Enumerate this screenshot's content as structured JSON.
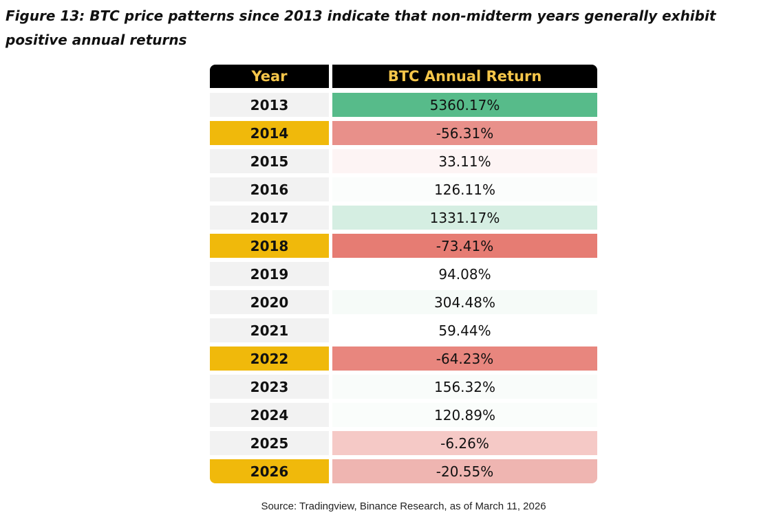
{
  "title": "Figure 13: BTC price patterns since 2013 indicate that non-midterm years generally exhibit positive annual returns",
  "table": {
    "header": [
      "Year",
      "BTC Annual Return"
    ],
    "rows": [
      {
        "year": "2013",
        "return": "5360.17%",
        "year_color": "#f2f2f2",
        "color": "#57bb8a"
      },
      {
        "year": "2014",
        "return": "-56.31%",
        "year_color": "#f0b90b",
        "color": "#e8908a"
      },
      {
        "year": "2015",
        "return": "33.11%",
        "year_color": "#f2f2f2",
        "color": "#fdf4f4"
      },
      {
        "year": "2016",
        "return": "126.11%",
        "year_color": "#f2f2f2",
        "color": "#fbfdfc"
      },
      {
        "year": "2017",
        "return": "1331.17%",
        "year_color": "#f2f2f2",
        "color": "#d5eee2"
      },
      {
        "year": "2018",
        "return": "-73.41%",
        "year_color": "#f0b90b",
        "color": "#e67c73"
      },
      {
        "year": "2019",
        "return": "94.08%",
        "year_color": "#f2f2f2",
        "color": "#ffffff"
      },
      {
        "year": "2020",
        "return": "304.48%",
        "year_color": "#f2f2f2",
        "color": "#f6fbf8"
      },
      {
        "year": "2021",
        "return": "59.44%",
        "year_color": "#f2f2f2",
        "color": "#ffffff"
      },
      {
        "year": "2022",
        "return": "-64.23%",
        "year_color": "#f0b90b",
        "color": "#e8867e"
      },
      {
        "year": "2023",
        "return": "156.32%",
        "year_color": "#f2f2f2",
        "color": "#f9fcfa"
      },
      {
        "year": "2024",
        "return": "120.89%",
        "year_color": "#f2f2f2",
        "color": "#fafdfb"
      },
      {
        "year": "2025",
        "return": "-6.26%",
        "year_color": "#f2f2f2",
        "color": "#f5c9c6"
      },
      {
        "year": "2026",
        "return": "-20.55%",
        "year_color": "#f0b90b",
        "color": "#efb5b1"
      }
    ]
  },
  "source": "Source: Tradingview, Binance Research, as of March 11, 2026"
}
